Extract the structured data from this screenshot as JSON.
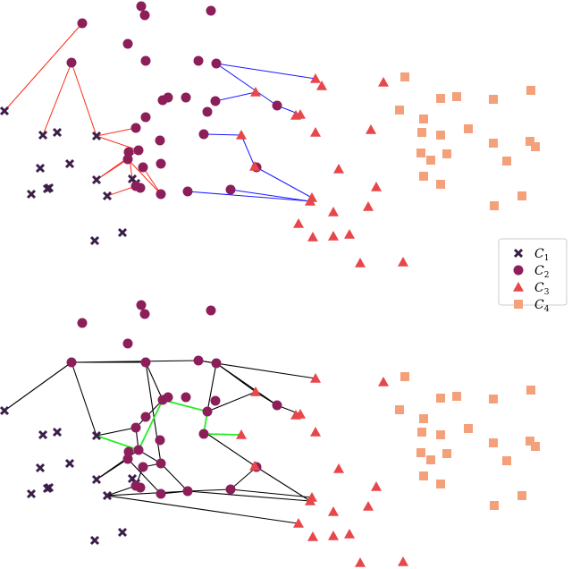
{
  "chart_data": {
    "type": "scatter",
    "legend": {
      "placement": "right",
      "entries": [
        {
          "id": "C1",
          "label": "C",
          "subscript": "1",
          "marker": "x",
          "color": "#3b1f4a"
        },
        {
          "id": "C2",
          "label": "C",
          "subscript": "2",
          "marker": "circle",
          "color": "#8c1e5a"
        },
        {
          "id": "C3",
          "label": "C",
          "subscript": "3",
          "marker": "triangle",
          "color": "#e8474a"
        },
        {
          "id": "C4",
          "label": "C",
          "subscript": "4",
          "marker": "square",
          "color": "#f4a07a"
        }
      ]
    },
    "colors": {
      "top_edges_red": "#ff2a1a",
      "top_edges_blue": "#1a1aff",
      "bottom_edges": "#000000",
      "bottom_path": "#22ee22"
    },
    "points": {
      "C1": [
        [
          5,
          124
        ],
        [
          48,
          151
        ],
        [
          64,
          148
        ],
        [
          108,
          152
        ],
        [
          45,
          188
        ],
        [
          78,
          183
        ],
        [
          108,
          201
        ],
        [
          55,
          210
        ],
        [
          53,
          211
        ],
        [
          35,
          217
        ],
        [
          148,
          200
        ],
        [
          152,
          205
        ],
        [
          120,
          219
        ],
        [
          137,
          260
        ],
        [
          106,
          269
        ]
      ],
      "C2": [
        [
          92,
          26
        ],
        [
          80,
          70
        ],
        [
          158,
          7
        ],
        [
          162,
          17
        ],
        [
          236,
          12
        ],
        [
          143,
          49
        ],
        [
          163,
          68
        ],
        [
          222,
          68
        ],
        [
          242,
          71
        ],
        [
          188,
          109
        ],
        [
          182,
          112
        ],
        [
          208,
          109
        ],
        [
          241,
          113
        ],
        [
          232,
          125
        ],
        [
          228,
          150
        ],
        [
          152,
          143
        ],
        [
          163,
          131
        ],
        [
          155,
          168
        ],
        [
          179,
          157
        ],
        [
          144,
          170
        ],
        [
          143,
          178
        ],
        [
          160,
          187
        ],
        [
          180,
          183
        ],
        [
          157,
          210
        ],
        [
          152,
          208
        ],
        [
          180,
          217
        ],
        [
          210,
          214
        ],
        [
          258,
          212
        ],
        [
          287,
          187
        ],
        [
          310,
          118
        ]
      ],
      "C3": [
        [
          353,
          88
        ],
        [
          360,
          96
        ],
        [
          286,
          103
        ],
        [
          336,
          128
        ],
        [
          353,
          148
        ],
        [
          415,
          145
        ],
        [
          429,
          92
        ],
        [
          379,
          189
        ],
        [
          421,
          209
        ],
        [
          347,
          225
        ],
        [
          373,
          237
        ],
        [
          412,
          231
        ],
        [
          334,
          250
        ],
        [
          350,
          265
        ],
        [
          373,
          264
        ],
        [
          391,
          262
        ],
        [
          403,
          294
        ],
        [
          451,
          293
        ],
        [
          331,
          129
        ],
        [
          349,
          221
        ],
        [
          270,
          151
        ],
        [
          285,
          186
        ]
      ],
      "C4": [
        [
          453,
          86
        ],
        [
          447,
          123
        ],
        [
          474,
          133
        ],
        [
          493,
          110
        ],
        [
          511,
          108
        ],
        [
          552,
          111
        ],
        [
          594,
          101
        ],
        [
          472,
          148
        ],
        [
          493,
          151
        ],
        [
          524,
          144
        ],
        [
          471,
          171
        ],
        [
          482,
          179
        ],
        [
          500,
          172
        ],
        [
          552,
          160
        ],
        [
          593,
          158
        ],
        [
          599,
          164
        ],
        [
          567,
          180
        ],
        [
          474,
          197
        ],
        [
          493,
          206
        ],
        [
          584,
          219
        ],
        [
          553,
          230
        ]
      ]
    },
    "top_edges_red": [
      [
        [
          5,
          124
        ],
        [
          92,
          26
        ]
      ],
      [
        [
          48,
          151
        ],
        [
          80,
          70
        ]
      ],
      [
        [
          80,
          70
        ],
        [
          108,
          152
        ]
      ],
      [
        [
          108,
          152
        ],
        [
          152,
          143
        ]
      ],
      [
        [
          108,
          152
        ],
        [
          155,
          168
        ]
      ],
      [
        [
          108,
          201
        ],
        [
          155,
          168
        ]
      ],
      [
        [
          108,
          201
        ],
        [
          143,
          178
        ]
      ],
      [
        [
          120,
          219
        ],
        [
          152,
          208
        ]
      ],
      [
        [
          143,
          178
        ],
        [
          180,
          217
        ]
      ],
      [
        [
          160,
          187
        ],
        [
          180,
          217
        ]
      ],
      [
        [
          148,
          200
        ],
        [
          144,
          170
        ]
      ]
    ],
    "top_edges_blue": [
      [
        [
          242,
          71
        ],
        [
          353,
          88
        ]
      ],
      [
        [
          242,
          71
        ],
        [
          310,
          118
        ]
      ],
      [
        [
          241,
          113
        ],
        [
          286,
          103
        ]
      ],
      [
        [
          310,
          118
        ],
        [
          336,
          128
        ]
      ],
      [
        [
          228,
          150
        ],
        [
          270,
          151
        ]
      ],
      [
        [
          270,
          151
        ],
        [
          285,
          186
        ]
      ],
      [
        [
          285,
          186
        ],
        [
          349,
          221
        ]
      ],
      [
        [
          210,
          214
        ],
        [
          349,
          225
        ]
      ],
      [
        [
          258,
          212
        ],
        [
          347,
          225
        ]
      ]
    ],
    "bottom": {
      "C1": [
        [
          5,
          459
        ],
        [
          48,
          486
        ],
        [
          64,
          483
        ],
        [
          108,
          487
        ],
        [
          45,
          523
        ],
        [
          78,
          518
        ],
        [
          108,
          536
        ],
        [
          55,
          545
        ],
        [
          53,
          546
        ],
        [
          35,
          552
        ],
        [
          148,
          535
        ],
        [
          152,
          540
        ],
        [
          120,
          554
        ],
        [
          137,
          595
        ],
        [
          106,
          604
        ]
      ],
      "C2": [
        [
          92,
          361
        ],
        [
          158,
          341
        ],
        [
          162,
          351
        ],
        [
          236,
          347
        ],
        [
          143,
          384
        ],
        [
          80,
          405
        ],
        [
          163,
          405
        ],
        [
          222,
          403
        ],
        [
          242,
          406
        ],
        [
          188,
          444
        ],
        [
          182,
          447
        ],
        [
          208,
          444
        ],
        [
          241,
          448
        ],
        [
          232,
          460
        ],
        [
          228,
          485
        ],
        [
          152,
          478
        ],
        [
          163,
          466
        ],
        [
          155,
          503
        ],
        [
          179,
          492
        ],
        [
          144,
          505
        ],
        [
          143,
          513
        ],
        [
          160,
          522
        ],
        [
          180,
          518
        ],
        [
          157,
          545
        ],
        [
          152,
          543
        ],
        [
          180,
          552
        ],
        [
          210,
          549
        ],
        [
          258,
          547
        ],
        [
          287,
          522
        ],
        [
          310,
          453
        ]
      ],
      "C3": [
        [
          353,
          423
        ],
        [
          286,
          438
        ],
        [
          336,
          463
        ],
        [
          353,
          483
        ],
        [
          429,
          427
        ],
        [
          379,
          524
        ],
        [
          421,
          544
        ],
        [
          347,
          560
        ],
        [
          373,
          572
        ],
        [
          412,
          566
        ],
        [
          334,
          585
        ],
        [
          350,
          600
        ],
        [
          373,
          599
        ],
        [
          391,
          597
        ],
        [
          403,
          629
        ],
        [
          451,
          628
        ],
        [
          331,
          464
        ],
        [
          349,
          556
        ],
        [
          270,
          486
        ],
        [
          285,
          521
        ]
      ],
      "C4": [
        [
          453,
          421
        ],
        [
          447,
          458
        ],
        [
          474,
          468
        ],
        [
          493,
          445
        ],
        [
          511,
          443
        ],
        [
          552,
          446
        ],
        [
          594,
          436
        ],
        [
          472,
          483
        ],
        [
          493,
          486
        ],
        [
          524,
          479
        ],
        [
          471,
          506
        ],
        [
          482,
          514
        ],
        [
          500,
          507
        ],
        [
          552,
          495
        ],
        [
          593,
          493
        ],
        [
          599,
          499
        ],
        [
          567,
          515
        ],
        [
          474,
          532
        ],
        [
          493,
          541
        ],
        [
          584,
          554
        ],
        [
          553,
          565
        ]
      ],
      "edges": [
        [
          [
            5,
            459
          ],
          [
            80,
            405
          ]
        ],
        [
          [
            80,
            405
          ],
          [
            222,
            403
          ]
        ],
        [
          [
            80,
            405
          ],
          [
            163,
            405
          ]
        ],
        [
          [
            80,
            405
          ],
          [
            108,
            487
          ]
        ],
        [
          [
            222,
            403
          ],
          [
            353,
            423
          ]
        ],
        [
          [
            222,
            403
          ],
          [
            242,
            406
          ]
        ],
        [
          [
            242,
            406
          ],
          [
            310,
            453
          ]
        ],
        [
          [
            242,
            406
          ],
          [
            286,
            438
          ]
        ],
        [
          [
            242,
            406
          ],
          [
            232,
            460
          ]
        ],
        [
          [
            163,
            405
          ],
          [
            182,
            447
          ]
        ],
        [
          [
            286,
            438
          ],
          [
            310,
            453
          ]
        ],
        [
          [
            310,
            453
          ],
          [
            336,
            463
          ]
        ],
        [
          [
            232,
            460
          ],
          [
            286,
            438
          ]
        ],
        [
          [
            108,
            487
          ],
          [
            152,
            478
          ]
        ],
        [
          [
            152,
            478
          ],
          [
            182,
            447
          ]
        ],
        [
          [
            152,
            478
          ],
          [
            155,
            503
          ]
        ],
        [
          [
            155,
            503
          ],
          [
            180,
            518
          ]
        ],
        [
          [
            180,
            518
          ],
          [
            210,
            549
          ]
        ],
        [
          [
            180,
            518
          ],
          [
            160,
            522
          ]
        ],
        [
          [
            160,
            522
          ],
          [
            152,
            543
          ]
        ],
        [
          [
            108,
            536
          ],
          [
            155,
            503
          ]
        ],
        [
          [
            108,
            536
          ],
          [
            143,
            513
          ]
        ],
        [
          [
            143,
            513
          ],
          [
            180,
            552
          ]
        ],
        [
          [
            180,
            552
          ],
          [
            210,
            549
          ]
        ],
        [
          [
            210,
            549
          ],
          [
            258,
            547
          ]
        ],
        [
          [
            258,
            547
          ],
          [
            349,
            556
          ]
        ],
        [
          [
            287,
            522
          ],
          [
            258,
            547
          ]
        ],
        [
          [
            287,
            522
          ],
          [
            232,
            485
          ]
        ],
        [
          [
            287,
            522
          ],
          [
            347,
            560
          ]
        ],
        [
          [
            120,
            554
          ],
          [
            210,
            549
          ]
        ],
        [
          [
            120,
            554
          ],
          [
            333,
            585
          ]
        ],
        [
          [
            210,
            549
          ],
          [
            347,
            560
          ]
        ],
        [
          [
            180,
            518
          ],
          [
            163,
            405
          ]
        ],
        [
          [
            152,
            543
          ],
          [
            120,
            554
          ]
        ]
      ],
      "green_path": [
        [
          [
            108,
            487
          ],
          [
            155,
            503
          ]
        ],
        [
          [
            155,
            503
          ],
          [
            182,
            447
          ]
        ],
        [
          [
            182,
            447
          ],
          [
            232,
            460
          ]
        ],
        [
          [
            232,
            460
          ],
          [
            228,
            485
          ]
        ],
        [
          [
            228,
            485
          ],
          [
            270,
            486
          ]
        ]
      ]
    }
  }
}
